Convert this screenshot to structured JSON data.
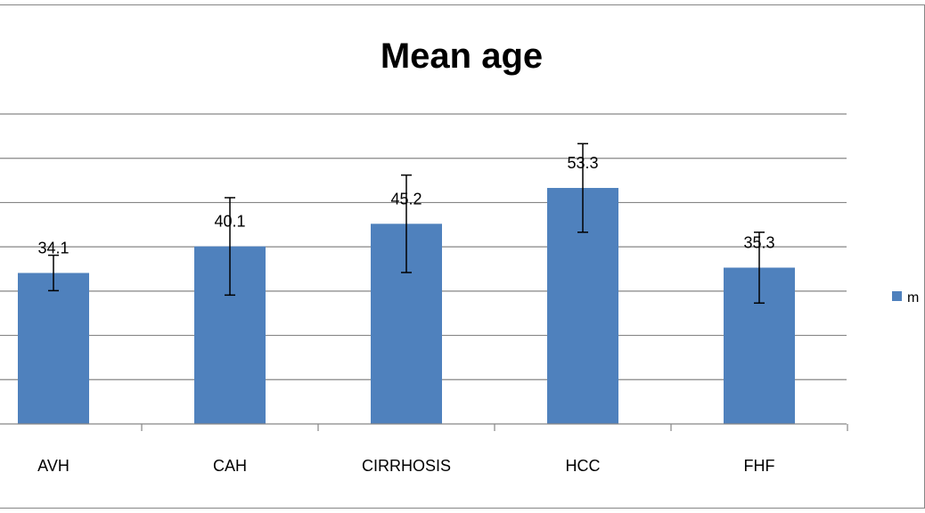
{
  "chart_data": {
    "type": "bar",
    "title": "Mean age",
    "categories": [
      "AVH",
      "CAH",
      "CIRRHOSIS",
      "HCC",
      "FHF"
    ],
    "series": [
      {
        "values": [
          34.1,
          40.1,
          45.2,
          53.3,
          35.3
        ],
        "data_labels": [
          "34.1",
          "40.1",
          "45.2",
          "53.3",
          "35.3"
        ],
        "error": [
          4,
          11,
          11,
          10,
          8
        ],
        "color": "#4F81BD"
      }
    ],
    "legend_text": "m",
    "ylim": [
      0,
      70
    ],
    "grid": true,
    "legend_position": "right"
  }
}
